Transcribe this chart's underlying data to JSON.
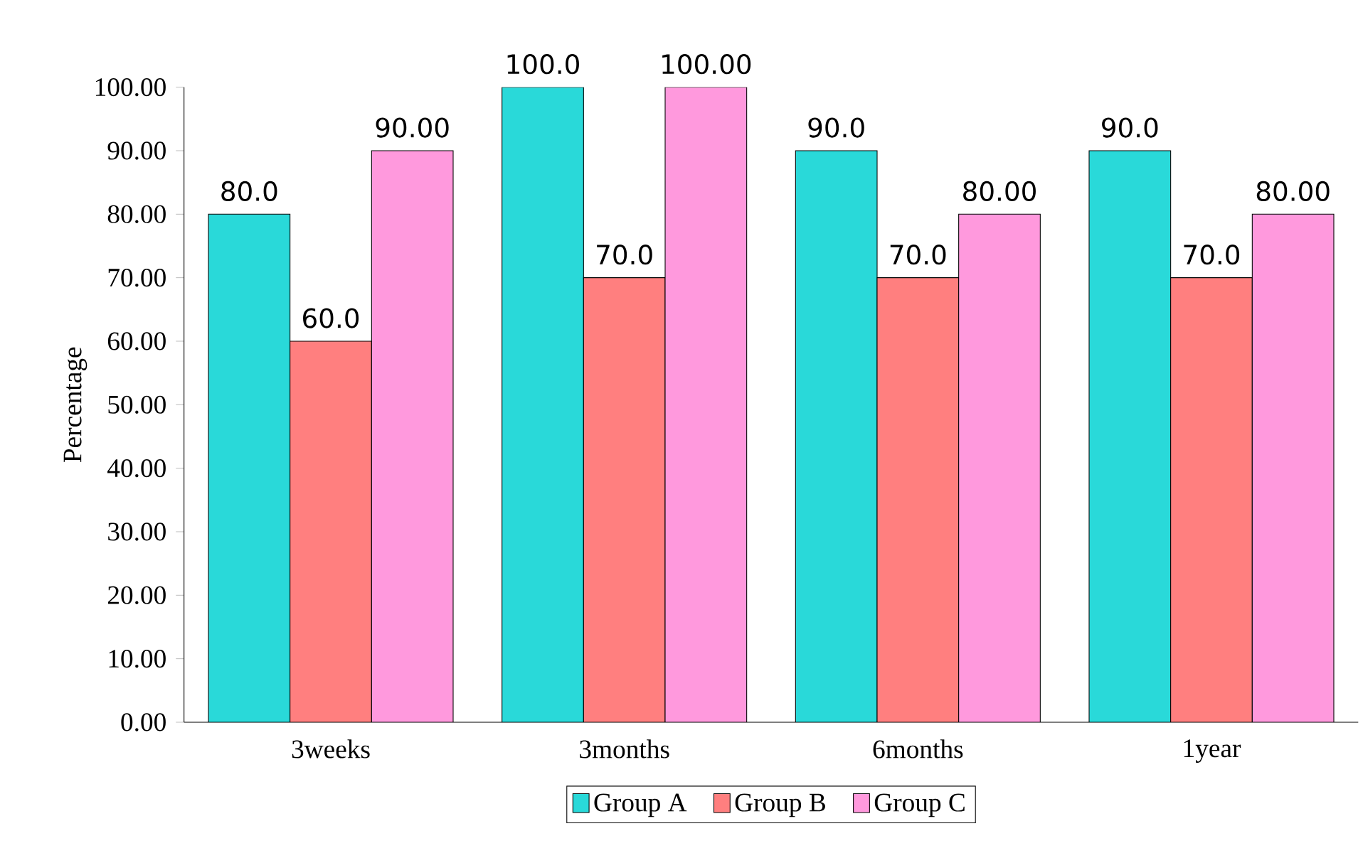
{
  "chart_data": {
    "type": "bar",
    "ylabel": "Percentage",
    "categories": [
      "3weeks",
      "3months",
      "6months",
      "1year"
    ],
    "series": [
      {
        "name": "Group A",
        "color": "#29d9d9",
        "values": [
          80,
          100,
          90,
          90
        ],
        "value_labels": [
          "80.0",
          "100.0",
          "90.0",
          "90.0"
        ]
      },
      {
        "name": "Group B",
        "color": "#ff7f7f",
        "values": [
          60,
          70,
          70,
          70
        ],
        "value_labels": [
          "60.0",
          "70.0",
          "70.0",
          "70.0"
        ]
      },
      {
        "name": "Group C",
        "color": "#ff99dd",
        "values": [
          90,
          100,
          80,
          80
        ],
        "value_labels": [
          "90.00",
          "100.00",
          "80.00",
          "80.00"
        ]
      }
    ],
    "ylim": [
      0,
      100
    ],
    "yticks": [
      {
        "value": 0,
        "label": "0.00"
      },
      {
        "value": 10,
        "label": "10.00"
      },
      {
        "value": 20,
        "label": "20.00"
      },
      {
        "value": 30,
        "label": "30.00"
      },
      {
        "value": 40,
        "label": "40.00"
      },
      {
        "value": 50,
        "label": "50.00"
      },
      {
        "value": 60,
        "label": "60.00"
      },
      {
        "value": 70,
        "label": "70.00"
      },
      {
        "value": 80,
        "label": "80.00"
      },
      {
        "value": 90,
        "label": "90.00"
      },
      {
        "value": 100,
        "label": "100.00"
      }
    ],
    "grid": false,
    "legend": "bottom"
  }
}
